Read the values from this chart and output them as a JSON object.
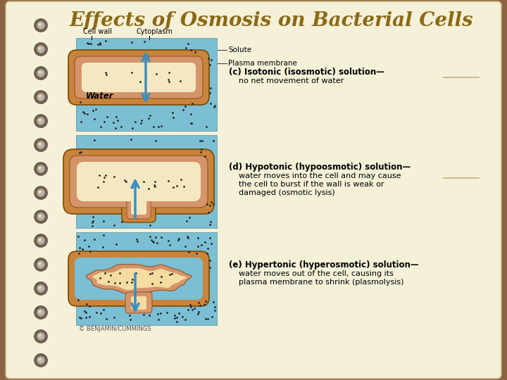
{
  "title": "Effects of Osmosis on Bacterial Cells",
  "title_color": "#8B6914",
  "title_fontsize": 20,
  "bg_outer": "#8B6340",
  "bg_inner": "#F5F0D8",
  "cell_bg_color": "#7BBFD4",
  "cell_wall_color": "#C8843C",
  "cell_membrane_color": "#D4956A",
  "cytoplasm_color": "#F5E8C0",
  "cytoplasm_shrunken_color": "#F5DCA0",
  "arrow_color": "#3A8FBF",
  "dot_color": "#222222",
  "copyright_text": "© BENJAMIN/CUMMINGS",
  "panel_c_label_bold": "(c) Isotonic (isosmotic) solution—",
  "panel_c_text": "no net movement of water",
  "panel_d_label_bold": "(d) Hypotonic (hypoosmotic) solution—",
  "panel_d_text1": "water moves into the cell and may cause",
  "panel_d_text2": "the cell to burst if the wall is weak or",
  "panel_d_text3": "damaged (osmotic lysis)",
  "panel_e_label_bold": "(e) Hypertonic (hyperosmotic) solution—",
  "panel_e_text1": "water moves out of the cell, causing its",
  "panel_e_text2": "plasma membrane to shrink (plasmolysis)",
  "label_cell_wall": "Cell wall",
  "label_cytoplasm": "Cytoplasm",
  "label_solute": "Solute",
  "label_plasma_membrane": "Plasma membrane",
  "label_water": "Water"
}
